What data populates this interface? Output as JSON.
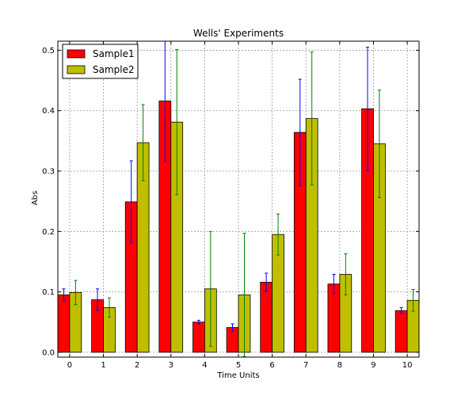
{
  "chart_data": {
    "type": "bar",
    "title": "Wells' Experiments",
    "xlabel": "Time Units",
    "ylabel": "Abs",
    "categories": [
      "0",
      "1",
      "2",
      "3",
      "4",
      "5",
      "6",
      "7",
      "8",
      "9",
      "10"
    ],
    "ylim": [
      -0.008,
      0.515
    ],
    "yticks": [
      "0.0",
      "0.1",
      "0.2",
      "0.3",
      "0.4",
      "0.5"
    ],
    "grid": true,
    "legend_position": "top-left",
    "series": [
      {
        "name": "Sample1",
        "color": "#ff0000",
        "error_color": "#0000ff",
        "values": [
          0.095,
          0.087,
          0.249,
          0.416,
          0.05,
          0.041,
          0.116,
          0.364,
          0.113,
          0.403,
          0.069
        ],
        "errors": [
          0.01,
          0.018,
          0.068,
          0.1,
          0.003,
          0.006,
          0.015,
          0.088,
          0.016,
          0.102,
          0.005
        ]
      },
      {
        "name": "Sample2",
        "color": "#bfbf00",
        "error_color": "#008000",
        "values": [
          0.099,
          0.074,
          0.347,
          0.381,
          0.105,
          0.095,
          0.195,
          0.387,
          0.129,
          0.345,
          0.086
        ],
        "errors": [
          0.02,
          0.016,
          0.063,
          0.12,
          0.095,
          0.102,
          0.034,
          0.11,
          0.034,
          0.089,
          0.018
        ]
      }
    ]
  }
}
